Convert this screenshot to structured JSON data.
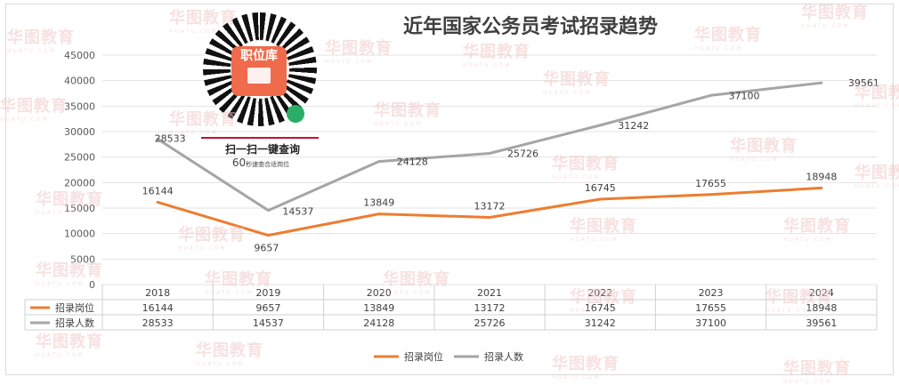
{
  "title": "近年国家公务员考试招录趋势",
  "qr": {
    "badge_text": "职位库",
    "line1": "扫一扫一键查询",
    "line2_num": "60",
    "line2_text": "秒速查合适岗位"
  },
  "watermark_text": "华图教育",
  "watermark_sub": "HUATU.COM",
  "chart_data": {
    "type": "line",
    "title": "近年国家公务员考试招录趋势",
    "categories": [
      "2018",
      "2019",
      "2020",
      "2021",
      "2022",
      "2023",
      "2024"
    ],
    "ylim": [
      0,
      45000
    ],
    "yticks": [
      0,
      5000,
      10000,
      15000,
      20000,
      25000,
      30000,
      35000,
      40000,
      45000
    ],
    "grid": true,
    "legend_position": "bottom",
    "data_table": true,
    "series": [
      {
        "name": "招录岗位",
        "color": "#ed7d31",
        "values": [
          16144,
          9657,
          13849,
          13172,
          16745,
          17655,
          18948
        ]
      },
      {
        "name": "招录人数",
        "color": "#a5a5a5",
        "values": [
          28533,
          14537,
          24128,
          25726,
          31242,
          37100,
          39561
        ]
      }
    ]
  }
}
